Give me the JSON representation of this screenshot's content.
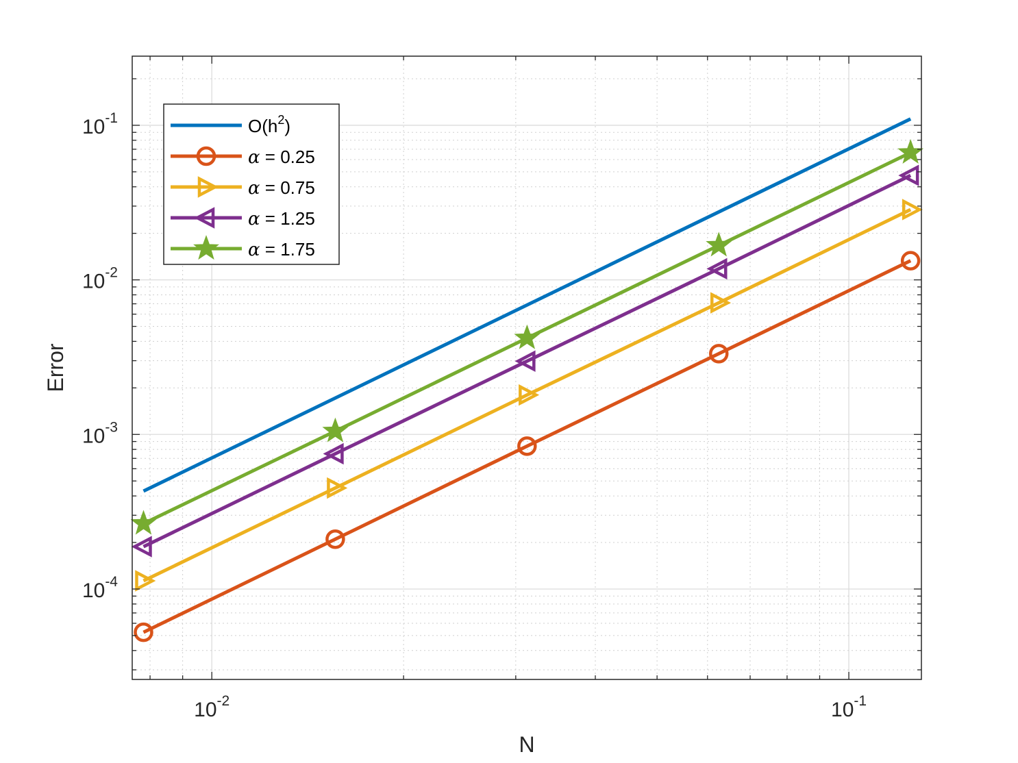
{
  "chart_data": {
    "type": "line",
    "scale": {
      "x": "log",
      "y": "log"
    },
    "xlabel": "N",
    "ylabel": "Error",
    "xlim": [
      0.0075,
      0.13
    ],
    "ylim": [
      2.6e-05,
      0.28
    ],
    "grid": true,
    "minor_grid": true,
    "x_ticks": [
      {
        "value": 0.01,
        "base": "10",
        "exp": "-2"
      },
      {
        "value": 0.1,
        "base": "10",
        "exp": "-1"
      }
    ],
    "y_ticks": [
      {
        "value": 0.0001,
        "base": "10",
        "exp": "-4"
      },
      {
        "value": 0.001,
        "base": "10",
        "exp": "-3"
      },
      {
        "value": 0.01,
        "base": "10",
        "exp": "-2"
      },
      {
        "value": 0.1,
        "base": "10",
        "exp": "-1"
      }
    ],
    "legend": {
      "position": "top-left"
    },
    "series": [
      {
        "name": "O(h²)",
        "label_parts": {
          "pre": "O(h",
          "sup": "2",
          "post": ")"
        },
        "color": "#0072BD",
        "marker": "none",
        "x": [
          0.0078125,
          0.125
        ],
        "y": [
          0.00043,
          0.11
        ]
      },
      {
        "name": "α = 0.25",
        "label_parts": {
          "symbol": "α",
          "text": " = 0.25"
        },
        "color": "#D95319",
        "marker": "circle",
        "x": [
          0.0078125,
          0.015625,
          0.03125,
          0.0625,
          0.125
        ],
        "y": [
          5.25e-05,
          0.00021,
          0.00084,
          0.00333,
          0.0133
        ]
      },
      {
        "name": "α = 0.75",
        "label_parts": {
          "symbol": "α",
          "text": " = 0.75"
        },
        "color": "#EDB120",
        "marker": "triangle-right",
        "x": [
          0.0078125,
          0.015625,
          0.03125,
          0.0625,
          0.125
        ],
        "y": [
          0.000113,
          0.00045,
          0.0018,
          0.0071,
          0.0285
        ]
      },
      {
        "name": "α = 1.25",
        "label_parts": {
          "symbol": "α",
          "text": " = 1.25"
        },
        "color": "#7E2F8E",
        "marker": "triangle-left",
        "x": [
          0.0078125,
          0.015625,
          0.03125,
          0.0625,
          0.125
        ],
        "y": [
          0.000188,
          0.00075,
          0.00298,
          0.0118,
          0.0474
        ]
      },
      {
        "name": "α = 1.75",
        "label_parts": {
          "symbol": "α",
          "text": " = 1.75"
        },
        "color": "#77AC30",
        "marker": "star",
        "x": [
          0.0078125,
          0.015625,
          0.03125,
          0.0625,
          0.125
        ],
        "y": [
          0.000265,
          0.00105,
          0.0042,
          0.0167,
          0.0665
        ]
      }
    ]
  }
}
